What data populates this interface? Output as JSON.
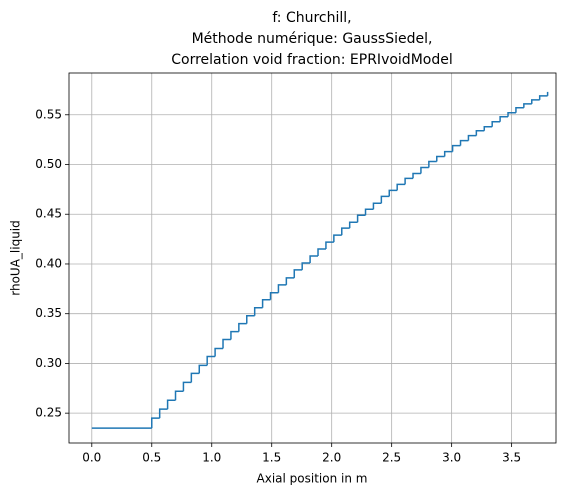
{
  "chart_data": {
    "type": "line",
    "drawstyle": "steps-post",
    "title": [
      "f: Churchill,",
      "Méthode numérique: GaussSiedel,",
      "Correlation void fraction: EPRIvoidModel"
    ],
    "xlabel": "Axial position in m",
    "ylabel": "rhoUA_liquid",
    "x": [
      0,
      0.5,
      0.566,
      0.632,
      0.698,
      0.764,
      0.83,
      0.896,
      0.962,
      1.028,
      1.094,
      1.16,
      1.226,
      1.292,
      1.358,
      1.424,
      1.49,
      1.556,
      1.622,
      1.688,
      1.754,
      1.82,
      1.886,
      1.952,
      2.018,
      2.084,
      2.15,
      2.216,
      2.282,
      2.348,
      2.414,
      2.48,
      2.546,
      2.612,
      2.678,
      2.744,
      2.81,
      2.876,
      2.942,
      3.008,
      3.074,
      3.14,
      3.206,
      3.272,
      3.338,
      3.404,
      3.47,
      3.536,
      3.602,
      3.668,
      3.734,
      3.8
    ],
    "series": [
      {
        "name": "rhoUA_liquid",
        "color": "#1f77b4",
        "values": [
          0.235,
          0.245,
          0.254,
          0.263,
          0.272,
          0.281,
          0.29,
          0.298,
          0.307,
          0.315,
          0.324,
          0.332,
          0.34,
          0.348,
          0.356,
          0.364,
          0.371,
          0.379,
          0.386,
          0.394,
          0.401,
          0.408,
          0.415,
          0.422,
          0.429,
          0.436,
          0.442,
          0.449,
          0.455,
          0.461,
          0.468,
          0.474,
          0.48,
          0.486,
          0.491,
          0.497,
          0.503,
          0.508,
          0.513,
          0.519,
          0.524,
          0.529,
          0.534,
          0.538,
          0.543,
          0.548,
          0.552,
          0.557,
          0.561,
          0.565,
          0.569,
          0.573
        ]
      }
    ],
    "xlim": [
      -0.19,
      3.87
    ],
    "ylim": [
      0.22,
      0.592
    ],
    "xticks": [
      {
        "value": 0,
        "label": "0.0"
      },
      0.5,
      {
        "value": 1,
        "label": "1.0"
      },
      1.5,
      {
        "value": 2,
        "label": "2.0"
      },
      2.5,
      {
        "value": 3,
        "label": "3.0"
      },
      3.5
    ],
    "yticks": [
      0.25,
      {
        "value": 0.3,
        "label": "0.30"
      },
      0.35,
      {
        "value": 0.4,
        "label": "0.40"
      },
      0.45,
      {
        "value": 0.5,
        "label": "0.50"
      },
      0.55
    ],
    "grid": true
  }
}
